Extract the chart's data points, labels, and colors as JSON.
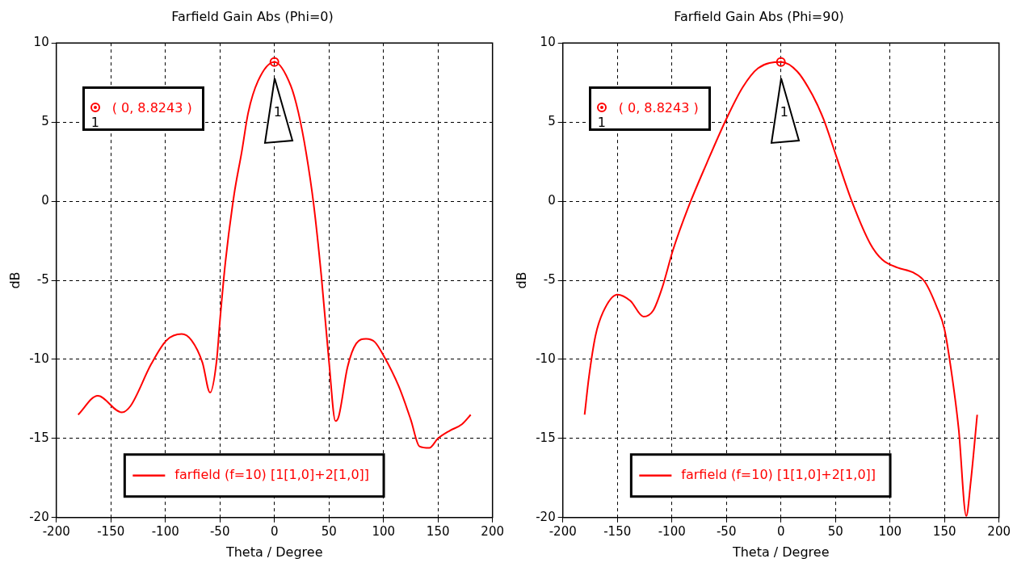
{
  "chart_data": [
    {
      "type": "line",
      "title": "Farfield Gain Abs (Phi=0)",
      "xlabel": "Theta / Degree",
      "ylabel": "dB",
      "xlim": [
        -200,
        200
      ],
      "xticks": [
        -200,
        -150,
        -100,
        -50,
        0,
        50,
        100,
        150,
        200
      ],
      "ylim": [
        -20,
        10
      ],
      "yticks": [
        -20,
        -15,
        -10,
        -5,
        0,
        5,
        10
      ],
      "grid": true,
      "legend": "bottom",
      "marker": "none",
      "line_style": "solid",
      "annotations": [
        "( 0, 8.8243 )",
        "1"
      ],
      "series": [
        {
          "name": "farfield (f=10) [1[1,0]+2[1,0]]",
          "color": "#ff0000",
          "x": [
            -180,
            -162,
            -140,
            -132,
            -113,
            -99,
            -85,
            -76,
            -66,
            -59,
            -53,
            -50,
            -45,
            -37,
            -30,
            -24,
            -15,
            0,
            15,
            22,
            29,
            36,
            43,
            50,
            56,
            59,
            67,
            75,
            84,
            92,
            100,
            114,
            125,
            133,
            142,
            150,
            161,
            172,
            180
          ],
          "values": [
            -13.5,
            -12.3,
            -13.35,
            -12.95,
            -10.3,
            -8.8,
            -8.4,
            -8.8,
            -10.2,
            -12.1,
            -10.1,
            -7.6,
            -3.9,
            0.4,
            3.1,
            5.6,
            7.6,
            8.8,
            7.3,
            5.6,
            3.1,
            -0.2,
            -4.7,
            -10.1,
            -13.9,
            -13.6,
            -10.5,
            -9.0,
            -8.7,
            -8.9,
            -9.75,
            -11.7,
            -13.8,
            -15.5,
            -15.6,
            -15.0,
            -14.5,
            -14.1,
            -13.5
          ]
        }
      ]
    },
    {
      "type": "line",
      "title": "Farfield Gain Abs (Phi=90)",
      "xlabel": "Theta / Degree",
      "ylabel": "dB",
      "xlim": [
        -200,
        200
      ],
      "xticks": [
        -200,
        -150,
        -100,
        -50,
        0,
        50,
        100,
        150,
        200
      ],
      "ylim": [
        -20,
        10
      ],
      "yticks": [
        -20,
        -15,
        -10,
        -5,
        0,
        5,
        10
      ],
      "grid": true,
      "legend": "bottom",
      "marker": "none",
      "line_style": "solid",
      "annotations": [
        "( 0, 8.8243 )",
        "1"
      ],
      "series": [
        {
          "name": "farfield (f=10) [1[1,0]+2[1,0]]",
          "color": "#ff0000",
          "x": [
            -180,
            -176,
            -170,
            -163,
            -150,
            -138,
            -126,
            -117,
            -109,
            -99,
            -85,
            -68,
            -50,
            -35,
            -21,
            0,
            15,
            29,
            39,
            50,
            65,
            82,
            93,
            107,
            121,
            132,
            143,
            150,
            157,
            163,
            170,
            174,
            180
          ],
          "values": [
            -13.5,
            -11.1,
            -8.5,
            -7.0,
            -5.9,
            -6.3,
            -7.3,
            -6.9,
            -5.5,
            -3.1,
            -0.4,
            2.4,
            5.2,
            7.2,
            8.4,
            8.8,
            8.2,
            6.7,
            5.2,
            3.0,
            0.0,
            -2.7,
            -3.7,
            -4.2,
            -4.5,
            -5.1,
            -6.7,
            -8.1,
            -11.1,
            -14.4,
            -19.9,
            -17.8,
            -13.5
          ]
        }
      ]
    }
  ]
}
